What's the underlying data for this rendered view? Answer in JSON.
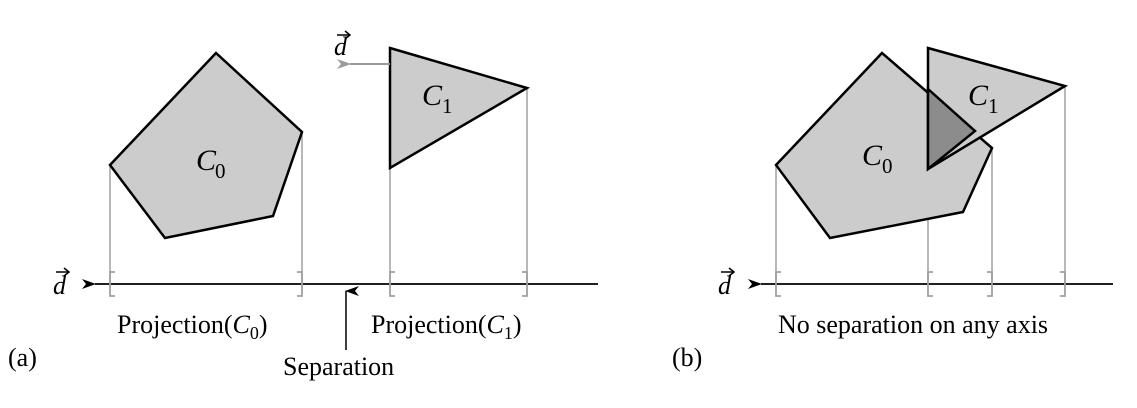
{
  "panel_a": {
    "tag": "(a)",
    "axis_label": "d",
    "c0_label": "C",
    "c0_sub": "0",
    "c1_label": "C",
    "c1_sub": "1",
    "direction_label": "d",
    "projection_c0": {
      "prefix": "Projection(",
      "var": "C",
      "sub": "0",
      "suffix": ")"
    },
    "projection_c1": {
      "prefix": "Projection(",
      "var": "C",
      "sub": "1",
      "suffix": ")"
    },
    "separation_label": "Separation"
  },
  "panel_b": {
    "tag": "(b)",
    "axis_label": "d",
    "c0_label": "C",
    "c0_sub": "0",
    "c1_label": "C",
    "c1_sub": "1",
    "caption": "No separation on any axis"
  },
  "colors": {
    "fill": "#cccccc",
    "overlap_fill": "#8c8c8c",
    "outline": "#000000",
    "projection_lines": "#a0a0a0"
  }
}
